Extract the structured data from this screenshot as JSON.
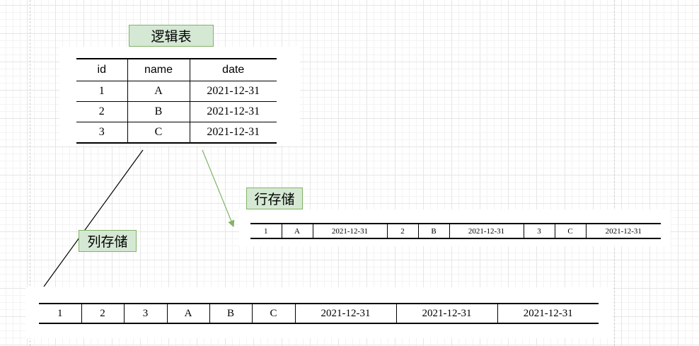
{
  "labels": {
    "logical_table": "逻辑表",
    "row_storage": "行存储",
    "column_storage": "列存储"
  },
  "logical_table": {
    "headers": [
      "id",
      "name",
      "date"
    ],
    "rows": [
      [
        "1",
        "A",
        "2021-12-31"
      ],
      [
        "2",
        "B",
        "2021-12-31"
      ],
      [
        "3",
        "C",
        "2021-12-31"
      ]
    ]
  },
  "row_storage": [
    "1",
    "A",
    "2021-12-31",
    "2",
    "B",
    "2021-12-31",
    "3",
    "C",
    "2021-12-31"
  ],
  "column_storage": [
    "1",
    "2",
    "3",
    "A",
    "B",
    "C",
    "2021-12-31",
    "2021-12-31",
    "2021-12-31"
  ],
  "colors": {
    "label_fill": "#d5e8d4",
    "label_border": "#82b366",
    "arrow_green": "#82b366"
  }
}
